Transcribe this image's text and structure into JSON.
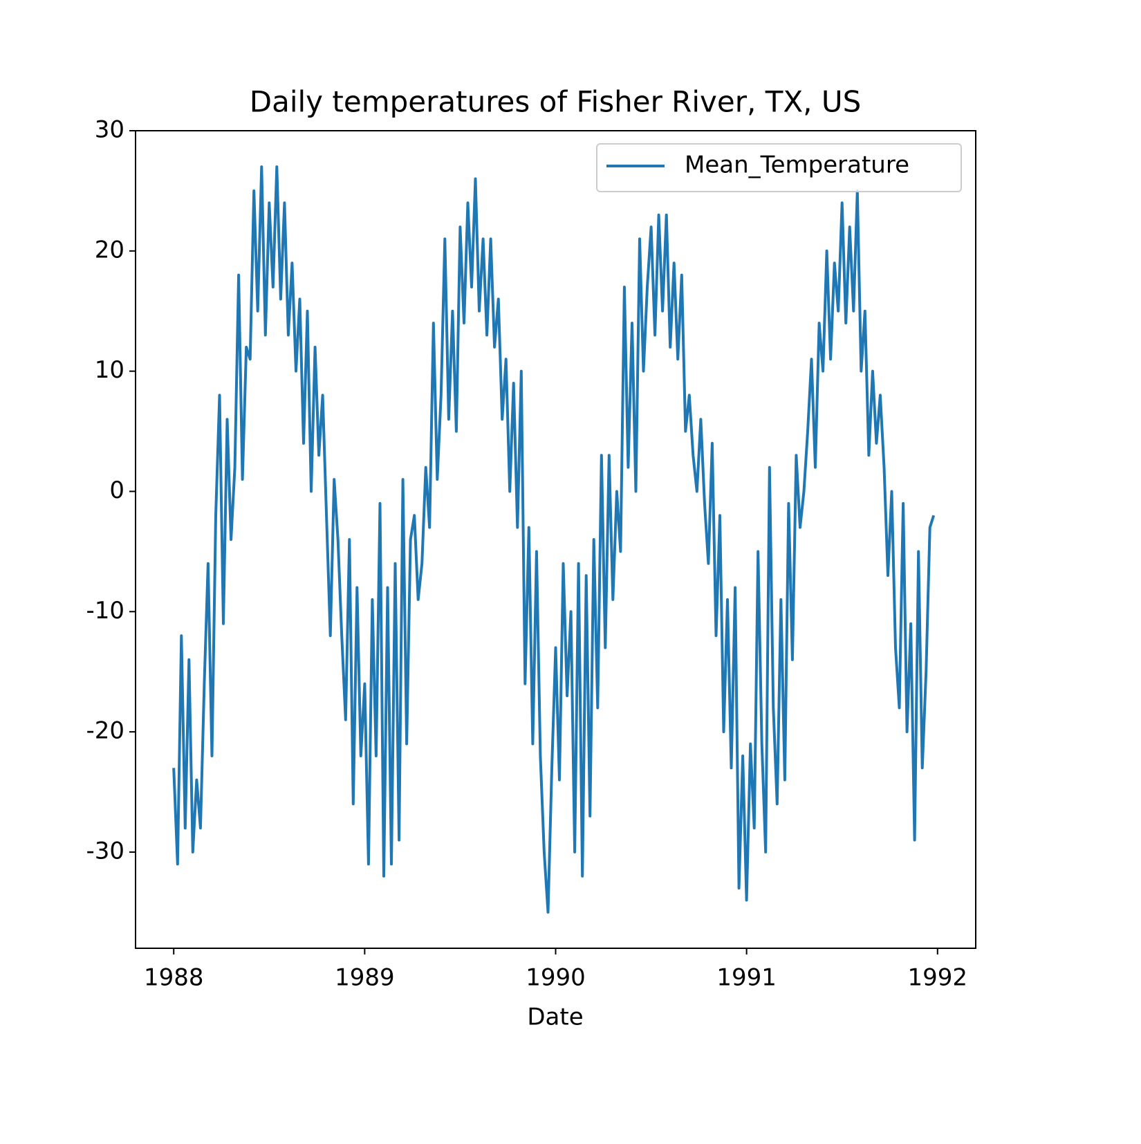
{
  "chart_data": {
    "type": "line",
    "title": "Daily temperatures of Fisher River, TX, US",
    "x_label": "Date",
    "x": [
      1988,
      1988.02,
      1988.04,
      1988.06,
      1988.08,
      1988.1,
      1988.12,
      1988.14,
      1988.16,
      1988.18,
      1988.2,
      1988.22,
      1988.24,
      1988.26,
      1988.28,
      1988.3,
      1988.32,
      1988.34,
      1988.36,
      1988.38,
      1988.4,
      1988.42,
      1988.44,
      1988.46,
      1988.48,
      1988.5,
      1988.52,
      1988.54,
      1988.56,
      1988.58,
      1988.6,
      1988.62,
      1988.64,
      1988.66,
      1988.68,
      1988.7,
      1988.72,
      1988.74,
      1988.76,
      1988.78,
      1988.8,
      1988.82,
      1988.84,
      1988.86,
      1988.88,
      1988.9,
      1988.92,
      1988.94,
      1988.96,
      1988.98,
      1989,
      1989.02,
      1989.04,
      1989.06,
      1989.08,
      1989.1,
      1989.12,
      1989.14,
      1989.16,
      1989.18,
      1989.2,
      1989.22,
      1989.24,
      1989.26,
      1989.28,
      1989.3,
      1989.32,
      1989.34,
      1989.36,
      1989.38,
      1989.4,
      1989.42,
      1989.44,
      1989.46,
      1989.48,
      1989.5,
      1989.52,
      1989.54,
      1989.56,
      1989.58,
      1989.6,
      1989.62,
      1989.64,
      1989.66,
      1989.68,
      1989.7,
      1989.72,
      1989.74,
      1989.76,
      1989.78,
      1989.8,
      1989.82,
      1989.84,
      1989.86,
      1989.88,
      1989.9,
      1989.92,
      1989.94,
      1989.96,
      1989.98,
      1990,
      1990.02,
      1990.04,
      1990.06,
      1990.08,
      1990.1,
      1990.12,
      1990.14,
      1990.16,
      1990.18,
      1990.2,
      1990.22,
      1990.24,
      1990.26,
      1990.28,
      1990.3,
      1990.32,
      1990.34,
      1990.36,
      1990.38,
      1990.4,
      1990.42,
      1990.44,
      1990.46,
      1990.48,
      1990.5,
      1990.52,
      1990.54,
      1990.56,
      1990.58,
      1990.6,
      1990.62,
      1990.64,
      1990.66,
      1990.68,
      1990.7,
      1990.72,
      1990.74,
      1990.76,
      1990.78,
      1990.8,
      1990.82,
      1990.84,
      1990.86,
      1990.88,
      1990.9,
      1990.92,
      1990.94,
      1990.96,
      1990.98,
      1991,
      1991.02,
      1991.04,
      1991.06,
      1991.08,
      1991.1,
      1991.12,
      1991.14,
      1991.16,
      1991.18,
      1991.2,
      1991.22,
      1991.24,
      1991.26,
      1991.28,
      1991.3,
      1991.32,
      1991.34,
      1991.36,
      1991.38,
      1991.4,
      1991.42,
      1991.44,
      1991.46,
      1991.48,
      1991.5,
      1991.52,
      1991.54,
      1991.56,
      1991.58,
      1991.6,
      1991.62,
      1991.64,
      1991.66,
      1991.68,
      1991.7,
      1991.72,
      1991.74,
      1991.76,
      1991.78,
      1991.8,
      1991.82,
      1991.84,
      1991.86,
      1991.88,
      1991.9,
      1991.92,
      1991.94,
      1991.96,
      1991.98
    ],
    "series": [
      {
        "name": "Mean_Temperature",
        "color": "#1f77b4",
        "values": [
          -23,
          -31,
          -12,
          -28,
          -14,
          -30,
          -24,
          -28,
          -16,
          -6,
          -22,
          -2,
          8,
          -11,
          6,
          -4,
          2,
          18,
          1,
          12,
          11,
          25,
          15,
          27,
          13,
          24,
          17,
          27,
          16,
          24,
          13,
          19,
          10,
          16,
          4,
          15,
          0,
          12,
          3,
          8,
          -2,
          -12,
          1,
          -4,
          -12,
          -19,
          -4,
          -26,
          -8,
          -22,
          -16,
          -31,
          -9,
          -22,
          -1,
          -32,
          -8,
          -31,
          -6,
          -29,
          1,
          -21,
          -4,
          -2,
          -9,
          -6,
          2,
          -3,
          14,
          1,
          8,
          21,
          6,
          15,
          5,
          22,
          14,
          24,
          17,
          26,
          15,
          21,
          13,
          21,
          12,
          16,
          6,
          11,
          0,
          9,
          -3,
          10,
          -16,
          -3,
          -21,
          -5,
          -22,
          -30,
          -35,
          -23,
          -13,
          -24,
          -6,
          -17,
          -10,
          -30,
          -6,
          -32,
          -7,
          -27,
          -4,
          -18,
          3,
          -13,
          3,
          -9,
          0,
          -5,
          17,
          2,
          14,
          0,
          21,
          10,
          17,
          22,
          13,
          23,
          15,
          23,
          12,
          19,
          11,
          18,
          5,
          8,
          3,
          0,
          6,
          -1,
          -6,
          4,
          -12,
          -2,
          -20,
          -9,
          -23,
          -8,
          -33,
          -22,
          -34,
          -21,
          -28,
          -5,
          -21,
          -30,
          2,
          -18,
          -26,
          -9,
          -24,
          -1,
          -14,
          3,
          -3,
          0,
          5,
          11,
          2,
          14,
          10,
          20,
          11,
          19,
          15,
          24,
          14,
          22,
          15,
          25,
          10,
          15,
          3,
          10,
          4,
          8,
          2,
          -7,
          0,
          -13,
          -18,
          -1,
          -20,
          -11,
          -29,
          -5,
          -23,
          -15,
          -3,
          -2
        ]
      }
    ],
    "xlim": [
      1987.8,
      1992.2
    ],
    "xticks": [
      1988,
      1989,
      1990,
      1991,
      1992
    ],
    "ylim": [
      -38,
      30
    ],
    "yticks": [
      -30,
      -20,
      -10,
      0,
      10,
      20,
      30
    ],
    "legend": "upper right"
  }
}
